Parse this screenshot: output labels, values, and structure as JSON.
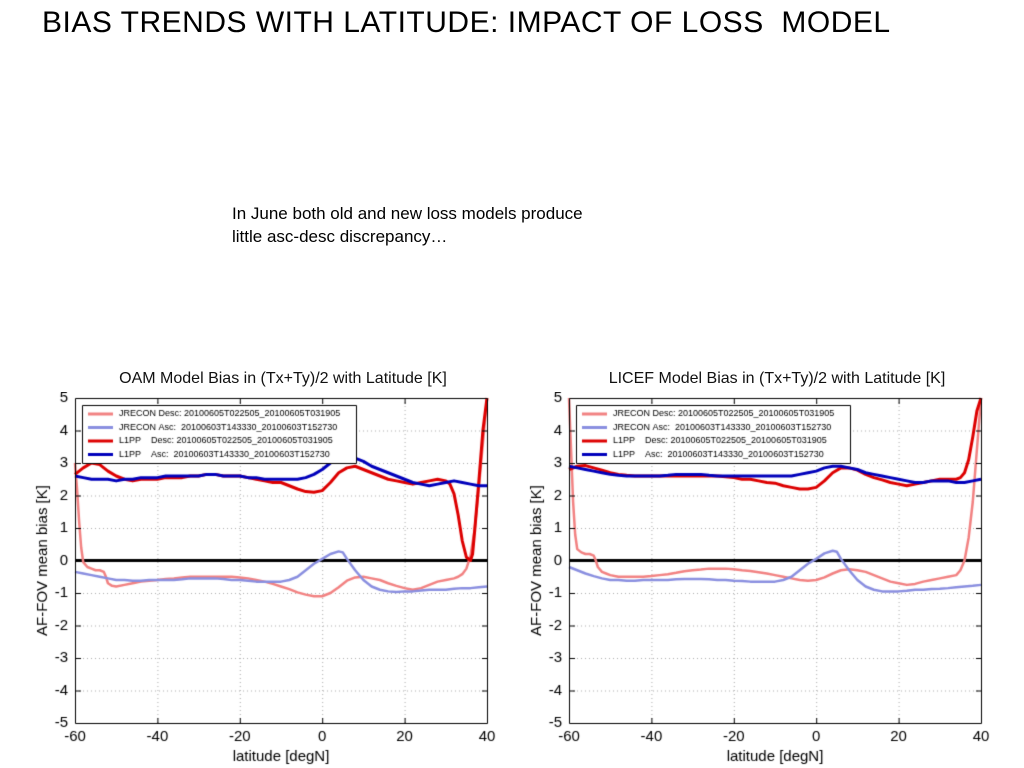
{
  "slide": {
    "title": "BIAS TRENDS WITH LATITUDE: IMPACT OF LOSS  MODEL",
    "note": [
      "In June both old and new loss models produce",
      "little asc-desc discrepancy…"
    ]
  },
  "colors": {
    "jrecon_desc": "#F28282",
    "jrecon_asc": "#8A8FE0",
    "l1pp_desc": "#DD0000",
    "l1pp_asc": "#0000BB",
    "zero_line": "#000000",
    "grid": "#ABABAB"
  },
  "chart_data": [
    {
      "type": "line",
      "title": "OAM Model Bias in (Tx+Ty)/2 with Latitude [K]",
      "xlabel": "latitude [degN]",
      "ylabel": "AF-FOV mean bias [K]",
      "xlim": [
        -60,
        40
      ],
      "ylim": [
        -5,
        5
      ],
      "xticks": [
        -60,
        -40,
        -20,
        0,
        20,
        40
      ],
      "yticks": [
        -5,
        -4,
        -3,
        -2,
        -1,
        0,
        1,
        2,
        3,
        4,
        5
      ],
      "grid": true,
      "zero_line_y": 0,
      "legend_position": "top-left",
      "series": [
        {
          "name": "JRECON Desc: 20100605T022505_20100605T031905",
          "color_key": "jrecon_desc",
          "width": 2.5,
          "x": [
            -60,
            -59.5,
            -59,
            -58.5,
            -58,
            -57,
            -56,
            -55,
            -54,
            -53,
            -52.5,
            -52,
            -51,
            -50,
            -48,
            -46,
            -44,
            -42,
            -40,
            -38,
            -36,
            -34,
            -32,
            -30,
            -28,
            -26,
            -24,
            -22,
            -20,
            -18,
            -16,
            -14,
            -12,
            -10,
            -8,
            -6,
            -4,
            -2,
            0,
            2,
            4,
            6,
            8,
            10,
            12,
            14,
            16,
            18,
            20,
            22,
            24,
            26,
            28,
            30,
            32,
            33,
            34,
            35,
            36,
            37,
            38,
            39,
            40
          ],
          "y": [
            3.0,
            2.2,
            1.2,
            0.4,
            -0.05,
            -0.2,
            -0.25,
            -0.3,
            -0.3,
            -0.35,
            -0.5,
            -0.7,
            -0.78,
            -0.8,
            -0.75,
            -0.7,
            -0.65,
            -0.62,
            -0.6,
            -0.57,
            -0.55,
            -0.52,
            -0.5,
            -0.5,
            -0.5,
            -0.5,
            -0.5,
            -0.5,
            -0.52,
            -0.55,
            -0.6,
            -0.65,
            -0.72,
            -0.8,
            -0.88,
            -0.98,
            -1.05,
            -1.1,
            -1.1,
            -1.0,
            -0.82,
            -0.62,
            -0.52,
            -0.5,
            -0.55,
            -0.6,
            -0.7,
            -0.78,
            -0.85,
            -0.9,
            -0.85,
            -0.75,
            -0.65,
            -0.6,
            -0.55,
            -0.5,
            -0.42,
            -0.25,
            0.15,
            0.95,
            2.2,
            3.6,
            5.0
          ]
        },
        {
          "name": "JRECON Asc:  20100603T143330_20100603T152730",
          "color_key": "jrecon_asc",
          "width": 2.5,
          "x": [
            -60,
            -58,
            -56,
            -54,
            -52,
            -50,
            -48,
            -46,
            -44,
            -42,
            -40,
            -38,
            -36,
            -34,
            -32,
            -30,
            -28,
            -26,
            -24,
            -22,
            -20,
            -18,
            -16,
            -14,
            -12,
            -10,
            -8,
            -6,
            -4,
            -2,
            0,
            2,
            4,
            5,
            6,
            8,
            10,
            12,
            14,
            16,
            18,
            20,
            22,
            24,
            26,
            28,
            30,
            32,
            34,
            36,
            38,
            40
          ],
          "y": [
            -0.35,
            -0.4,
            -0.45,
            -0.5,
            -0.55,
            -0.6,
            -0.6,
            -0.62,
            -0.62,
            -0.6,
            -0.6,
            -0.6,
            -0.6,
            -0.58,
            -0.55,
            -0.55,
            -0.55,
            -0.55,
            -0.57,
            -0.6,
            -0.6,
            -0.62,
            -0.65,
            -0.65,
            -0.65,
            -0.65,
            -0.6,
            -0.5,
            -0.3,
            -0.1,
            0.05,
            0.2,
            0.28,
            0.25,
            0.05,
            -0.3,
            -0.6,
            -0.8,
            -0.9,
            -0.95,
            -0.97,
            -0.95,
            -0.95,
            -0.92,
            -0.9,
            -0.9,
            -0.9,
            -0.87,
            -0.85,
            -0.85,
            -0.82,
            -0.8
          ]
        },
        {
          "name": "L1PP    Desc: 20100605T022505_20100605T031905",
          "color_key": "l1pp_desc",
          "width": 3,
          "x": [
            -60,
            -58,
            -56,
            -54,
            -52,
            -50,
            -48,
            -46,
            -44,
            -42,
            -40,
            -38,
            -36,
            -34,
            -32,
            -30,
            -28,
            -26,
            -24,
            -22,
            -20,
            -18,
            -16,
            -14,
            -12,
            -10,
            -8,
            -6,
            -4,
            -2,
            0,
            2,
            4,
            6,
            8,
            10,
            12,
            14,
            16,
            18,
            20,
            22,
            24,
            26,
            28,
            30,
            31,
            32,
            33,
            34,
            35,
            36,
            36.5,
            37,
            38,
            39,
            40
          ],
          "y": [
            2.65,
            2.85,
            3.0,
            2.95,
            2.75,
            2.6,
            2.5,
            2.45,
            2.5,
            2.5,
            2.5,
            2.55,
            2.55,
            2.55,
            2.6,
            2.6,
            2.65,
            2.65,
            2.6,
            2.6,
            2.6,
            2.55,
            2.5,
            2.45,
            2.4,
            2.4,
            2.3,
            2.2,
            2.12,
            2.1,
            2.15,
            2.4,
            2.7,
            2.85,
            2.9,
            2.8,
            2.7,
            2.6,
            2.5,
            2.45,
            2.4,
            2.35,
            2.4,
            2.45,
            2.5,
            2.45,
            2.35,
            2.05,
            1.4,
            0.6,
            0.1,
            0.0,
            0.2,
            0.9,
            2.4,
            4.0,
            5.0
          ]
        },
        {
          "name": "L1PP    Asc:  20100603T143330_20100603T152730",
          "color_key": "l1pp_asc",
          "width": 3,
          "x": [
            -60,
            -58,
            -56,
            -54,
            -52,
            -50,
            -48,
            -46,
            -44,
            -42,
            -40,
            -38,
            -36,
            -34,
            -32,
            -30,
            -28,
            -26,
            -24,
            -22,
            -20,
            -18,
            -16,
            -14,
            -12,
            -10,
            -8,
            -6,
            -4,
            -2,
            0,
            2,
            4,
            6,
            8,
            10,
            12,
            14,
            16,
            18,
            20,
            22,
            24,
            26,
            28,
            30,
            32,
            34,
            36,
            38,
            40
          ],
          "y": [
            2.6,
            2.55,
            2.5,
            2.5,
            2.5,
            2.45,
            2.5,
            2.5,
            2.55,
            2.55,
            2.55,
            2.6,
            2.6,
            2.6,
            2.6,
            2.6,
            2.65,
            2.65,
            2.6,
            2.6,
            2.6,
            2.55,
            2.55,
            2.5,
            2.5,
            2.5,
            2.5,
            2.5,
            2.55,
            2.65,
            2.8,
            3.0,
            3.15,
            3.2,
            3.15,
            3.05,
            2.9,
            2.8,
            2.7,
            2.6,
            2.5,
            2.4,
            2.35,
            2.3,
            2.35,
            2.4,
            2.45,
            2.4,
            2.35,
            2.3,
            2.3
          ]
        }
      ]
    },
    {
      "type": "line",
      "title": "LICEF Model Bias in (Tx+Ty)/2 with Latitude [K]",
      "xlabel": "latitude [degN]",
      "ylabel": "AF-FOV mean bias [K]",
      "xlim": [
        -60,
        40
      ],
      "ylim": [
        -5,
        5
      ],
      "xticks": [
        -60,
        -40,
        -20,
        0,
        20,
        40
      ],
      "yticks": [
        -5,
        -4,
        -3,
        -2,
        -1,
        0,
        1,
        2,
        3,
        4,
        5
      ],
      "grid": true,
      "zero_line_y": 0,
      "legend_position": "top-left",
      "series": [
        {
          "name": "JRECON Desc: 20100605T022505_20100605T031905",
          "color_key": "jrecon_desc",
          "width": 2.5,
          "x": [
            -60,
            -59.5,
            -59,
            -58.5,
            -58,
            -57,
            -56,
            -55,
            -54,
            -53.5,
            -53,
            -52,
            -51,
            -50,
            -48,
            -46,
            -44,
            -42,
            -40,
            -38,
            -36,
            -34,
            -32,
            -30,
            -28,
            -26,
            -24,
            -22,
            -20,
            -18,
            -16,
            -14,
            -12,
            -10,
            -8,
            -6,
            -4,
            -2,
            0,
            2,
            4,
            6,
            8,
            10,
            12,
            14,
            16,
            18,
            20,
            22,
            24,
            26,
            28,
            30,
            32,
            34,
            35,
            36,
            37,
            38,
            39,
            40
          ],
          "y": [
            5.0,
            3.4,
            1.8,
            0.8,
            0.35,
            0.25,
            0.2,
            0.2,
            0.15,
            0.0,
            -0.2,
            -0.35,
            -0.4,
            -0.45,
            -0.5,
            -0.5,
            -0.5,
            -0.5,
            -0.48,
            -0.45,
            -0.42,
            -0.38,
            -0.33,
            -0.3,
            -0.28,
            -0.25,
            -0.25,
            -0.25,
            -0.27,
            -0.3,
            -0.32,
            -0.36,
            -0.4,
            -0.45,
            -0.5,
            -0.55,
            -0.6,
            -0.62,
            -0.6,
            -0.52,
            -0.4,
            -0.3,
            -0.27,
            -0.3,
            -0.35,
            -0.45,
            -0.55,
            -0.65,
            -0.7,
            -0.75,
            -0.72,
            -0.65,
            -0.6,
            -0.55,
            -0.5,
            -0.45,
            -0.3,
            0.0,
            0.7,
            1.8,
            3.4,
            5.0
          ]
        },
        {
          "name": "JRECON Asc:  20100603T143330_20100603T152730",
          "color_key": "jrecon_asc",
          "width": 2.5,
          "x": [
            -60,
            -58,
            -56,
            -54,
            -52,
            -50,
            -48,
            -46,
            -44,
            -42,
            -40,
            -38,
            -36,
            -34,
            -32,
            -30,
            -28,
            -26,
            -24,
            -22,
            -20,
            -18,
            -16,
            -14,
            -12,
            -10,
            -8,
            -6,
            -4,
            -2,
            0,
            2,
            4,
            5,
            6,
            8,
            10,
            12,
            14,
            16,
            18,
            20,
            22,
            24,
            26,
            28,
            30,
            32,
            34,
            36,
            38,
            40
          ],
          "y": [
            -0.2,
            -0.3,
            -0.4,
            -0.48,
            -0.55,
            -0.6,
            -0.6,
            -0.62,
            -0.62,
            -0.6,
            -0.6,
            -0.6,
            -0.6,
            -0.58,
            -0.57,
            -0.57,
            -0.57,
            -0.58,
            -0.6,
            -0.6,
            -0.62,
            -0.63,
            -0.65,
            -0.65,
            -0.65,
            -0.65,
            -0.6,
            -0.5,
            -0.3,
            -0.1,
            0.05,
            0.22,
            0.3,
            0.27,
            0.05,
            -0.3,
            -0.6,
            -0.8,
            -0.9,
            -0.95,
            -0.95,
            -0.95,
            -0.93,
            -0.9,
            -0.9,
            -0.88,
            -0.87,
            -0.85,
            -0.82,
            -0.8,
            -0.78,
            -0.75
          ]
        },
        {
          "name": "L1PP    Desc: 20100605T022505_20100605T031905",
          "color_key": "l1pp_desc",
          "width": 3,
          "x": [
            -60,
            -58,
            -56,
            -54,
            -52,
            -50,
            -48,
            -46,
            -44,
            -42,
            -40,
            -38,
            -36,
            -34,
            -32,
            -30,
            -28,
            -26,
            -24,
            -22,
            -20,
            -18,
            -16,
            -14,
            -12,
            -10,
            -8,
            -6,
            -4,
            -2,
            0,
            2,
            4,
            6,
            8,
            10,
            12,
            14,
            16,
            18,
            20,
            22,
            24,
            26,
            28,
            30,
            32,
            34,
            35,
            36,
            37,
            38,
            39,
            40
          ],
          "y": [
            2.8,
            2.9,
            2.92,
            2.85,
            2.78,
            2.7,
            2.65,
            2.62,
            2.6,
            2.6,
            2.6,
            2.6,
            2.6,
            2.6,
            2.6,
            2.6,
            2.6,
            2.6,
            2.6,
            2.58,
            2.55,
            2.5,
            2.5,
            2.45,
            2.4,
            2.38,
            2.3,
            2.25,
            2.2,
            2.2,
            2.25,
            2.45,
            2.7,
            2.85,
            2.85,
            2.78,
            2.65,
            2.55,
            2.48,
            2.4,
            2.35,
            2.3,
            2.35,
            2.4,
            2.45,
            2.5,
            2.5,
            2.5,
            2.55,
            2.7,
            3.1,
            3.8,
            4.6,
            5.0
          ]
        },
        {
          "name": "L1PP    Asc:  20100603T143330_20100603T152730",
          "color_key": "l1pp_asc",
          "width": 3,
          "x": [
            -60,
            -58,
            -56,
            -54,
            -52,
            -50,
            -48,
            -46,
            -44,
            -42,
            -40,
            -38,
            -36,
            -34,
            -32,
            -30,
            -28,
            -26,
            -24,
            -22,
            -20,
            -18,
            -16,
            -14,
            -12,
            -10,
            -8,
            -6,
            -4,
            -2,
            0,
            2,
            4,
            6,
            8,
            10,
            12,
            14,
            16,
            18,
            20,
            22,
            24,
            26,
            28,
            30,
            32,
            34,
            36,
            38,
            40
          ],
          "y": [
            2.9,
            2.85,
            2.8,
            2.75,
            2.7,
            2.65,
            2.62,
            2.6,
            2.6,
            2.6,
            2.6,
            2.6,
            2.62,
            2.65,
            2.65,
            2.65,
            2.65,
            2.62,
            2.6,
            2.6,
            2.6,
            2.6,
            2.6,
            2.6,
            2.6,
            2.6,
            2.6,
            2.6,
            2.65,
            2.7,
            2.75,
            2.85,
            2.9,
            2.9,
            2.85,
            2.8,
            2.7,
            2.65,
            2.6,
            2.55,
            2.5,
            2.45,
            2.4,
            2.4,
            2.45,
            2.45,
            2.45,
            2.4,
            2.4,
            2.45,
            2.5
          ]
        }
      ]
    }
  ]
}
